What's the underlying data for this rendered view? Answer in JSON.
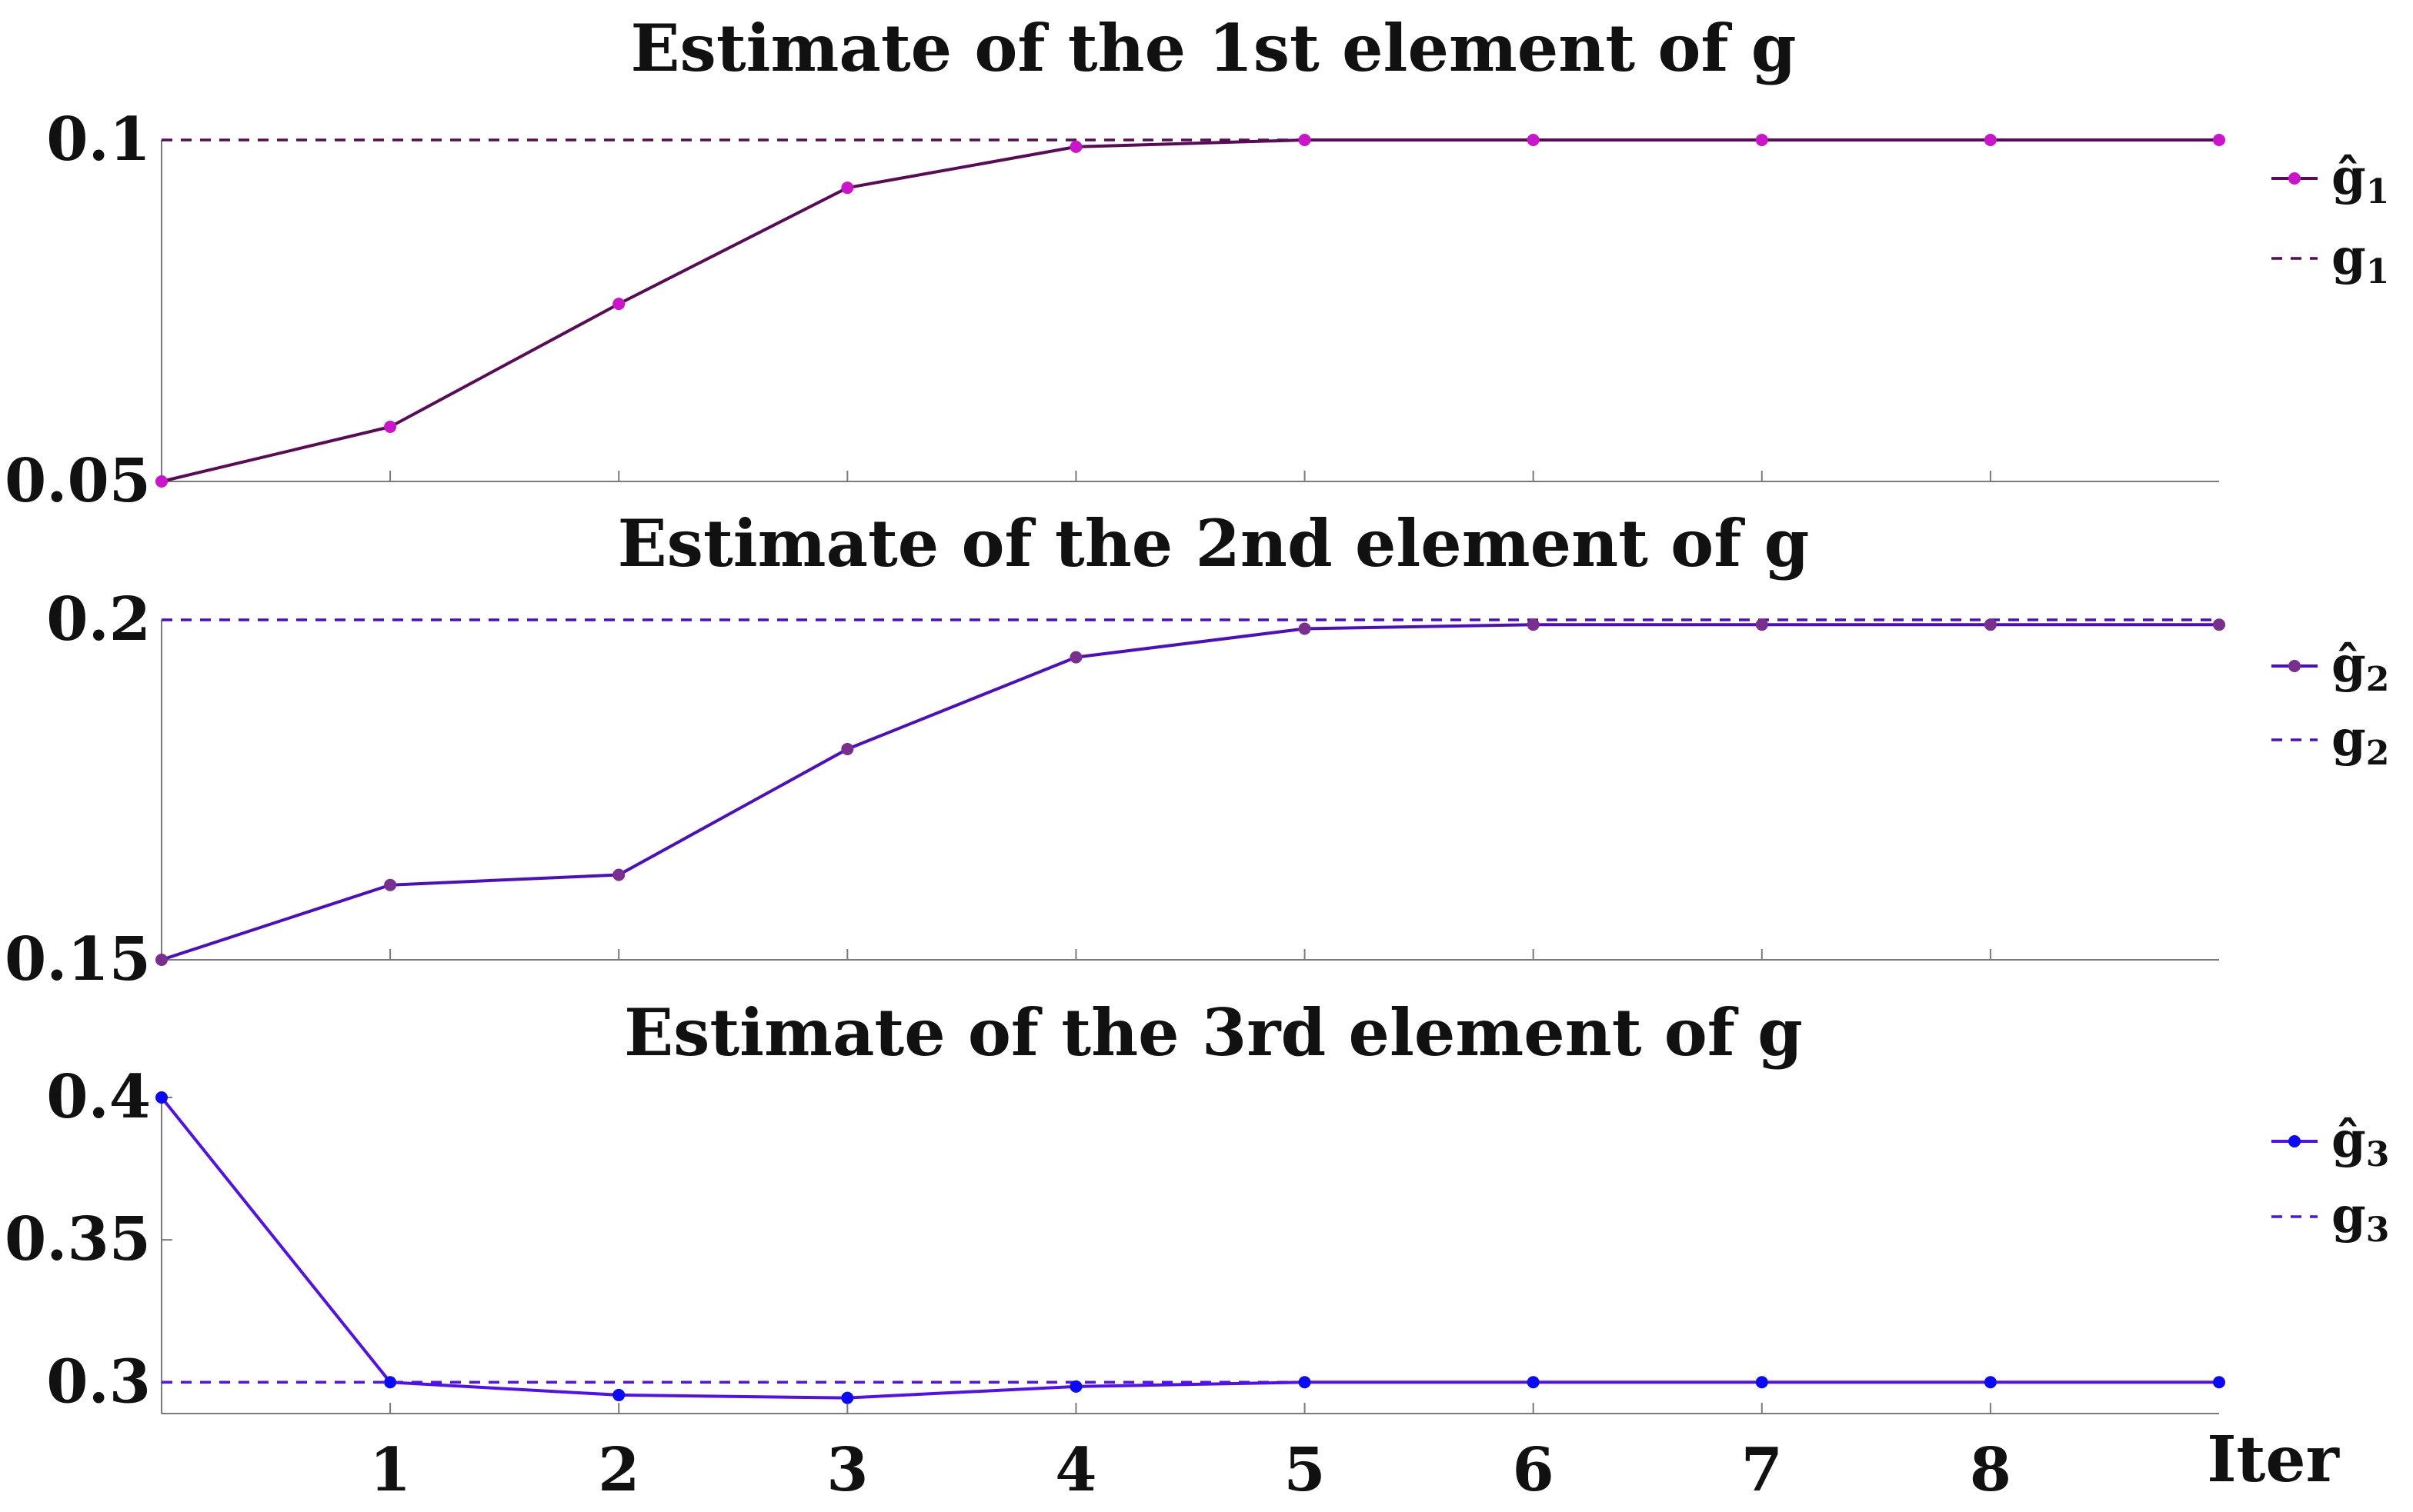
{
  "chart_data": [
    {
      "type": "line",
      "title": "Estimate of the 1st element of g",
      "x": [
        0,
        1,
        2,
        3,
        4,
        5,
        6,
        7,
        8,
        9
      ],
      "ylim": [
        0.05,
        0.1
      ],
      "yticks": [
        "0.05",
        "0.1"
      ],
      "grid": false,
      "legend_position": "right",
      "series": [
        {
          "name": "ĝ",
          "subscript": "1",
          "style": "solid-marker",
          "line_color": "#5A0A57",
          "marker_color": "#CC14CC",
          "values": [
            0.05,
            0.058,
            0.076,
            0.093,
            0.099,
            0.1,
            0.1,
            0.1,
            0.1,
            0.1
          ]
        },
        {
          "name": "g",
          "subscript": "1",
          "style": "dashed",
          "line_color": "#5A0A57",
          "value": 0.1
        }
      ]
    },
    {
      "type": "line",
      "title": "Estimate of the 2nd element of g",
      "x": [
        0,
        1,
        2,
        3,
        4,
        5,
        6,
        7,
        8,
        9
      ],
      "ylim": [
        0.15,
        0.2
      ],
      "yticks": [
        "0.15",
        "0.2"
      ],
      "grid": false,
      "legend_position": "right",
      "series": [
        {
          "name": "ĝ",
          "subscript": "2",
          "style": "solid-marker",
          "line_color": "#4A0FC2",
          "marker_color": "#7A2E8E",
          "values": [
            0.15,
            0.161,
            0.1625,
            0.181,
            0.1945,
            0.1987,
            0.1993,
            0.1993,
            0.1993,
            0.1993
          ]
        },
        {
          "name": "g",
          "subscript": "2",
          "style": "dashed",
          "line_color": "#4A0FC2",
          "value": 0.2
        }
      ]
    },
    {
      "type": "line",
      "title": "Estimate of the 3rd element of g",
      "x": [
        0,
        1,
        2,
        3,
        4,
        5,
        6,
        7,
        8,
        9
      ],
      "ylim": [
        0.289,
        0.4
      ],
      "yticks": [
        "0.3",
        "0.35",
        "0.4"
      ],
      "grid": false,
      "legend_position": "right",
      "series": [
        {
          "name": "ĝ",
          "subscript": "3",
          "style": "solid-marker",
          "line_color": "#5010F0",
          "marker_color": "#0A0AF5",
          "values": [
            0.4,
            0.3,
            0.2955,
            0.2945,
            0.2985,
            0.3,
            0.3,
            0.3,
            0.3,
            0.3
          ]
        },
        {
          "name": "g",
          "subscript": "3",
          "style": "dashed",
          "line_color": "#5010F0",
          "value": 0.3
        }
      ]
    }
  ],
  "x_axis": {
    "ticks": [
      1,
      2,
      3,
      4,
      5,
      6,
      7,
      8
    ],
    "tick_labels": [
      "1",
      "2",
      "3",
      "4",
      "5",
      "6",
      "7",
      "8"
    ],
    "label": "Iter"
  }
}
